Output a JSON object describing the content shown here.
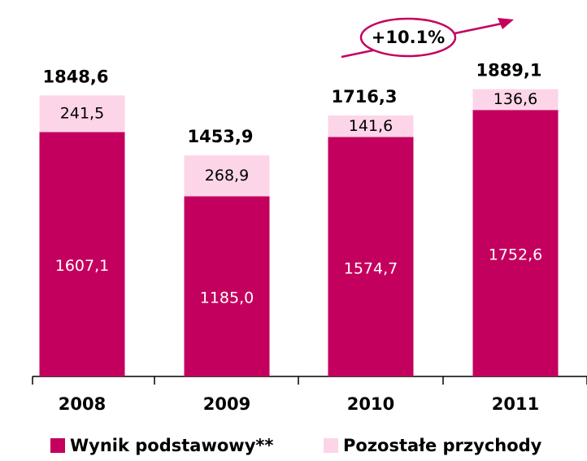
{
  "chart_data": {
    "type": "stacked_bar",
    "categories": [
      "2008",
      "2009",
      "2010",
      "2011"
    ],
    "series": [
      {
        "name": "Wynik podstawowy**",
        "color": "#c4005e",
        "values": [
          1607.1,
          1185.0,
          1574.7,
          1752.6
        ],
        "value_labels": [
          "1607,1",
          "1185,0",
          "1574,7",
          "1752,6"
        ]
      },
      {
        "name": "Pozostałe przychody",
        "color": "#fcd5e8",
        "values": [
          241.5,
          268.9,
          141.6,
          136.6
        ],
        "value_labels": [
          "241,5",
          "268,9",
          "141,6",
          "136,6"
        ]
      }
    ],
    "total_labels": [
      "1848,6",
      "1453,9",
      "1716,3",
      "1889,1"
    ],
    "annotation": "+10.1%",
    "ylim": [
      0,
      2000
    ]
  }
}
